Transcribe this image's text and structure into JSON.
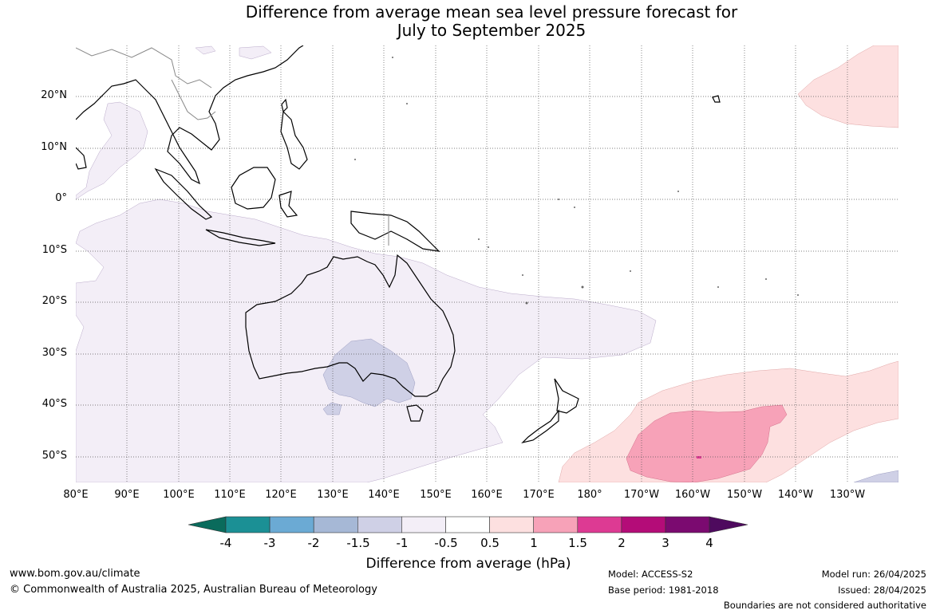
{
  "title": {
    "line1": "Difference from average mean sea level pressure forecast for",
    "line2": "July to September 2025"
  },
  "axes": {
    "lat_labels": [
      "20°N",
      "10°N",
      "0°",
      "10°S",
      "20°S",
      "30°S",
      "40°S",
      "50°S"
    ],
    "lon_labels": [
      "80°E",
      "90°E",
      "100°E",
      "110°E",
      "120°E",
      "130°E",
      "140°E",
      "150°E",
      "160°E",
      "170°E",
      "180°",
      "170°W",
      "160°W",
      "150°W",
      "140°W",
      "130°W"
    ]
  },
  "colorbar": {
    "title": "Difference from average (hPa)",
    "tick_labels": [
      "-4",
      "-3",
      "-2",
      "-1.5",
      "-1",
      "-0.5",
      "0.5",
      "1",
      "1.5",
      "2",
      "3",
      "4"
    ],
    "colors": [
      "#0a6b5c",
      "#1b9095",
      "#6baad4",
      "#a6b8d6",
      "#cfd0e6",
      "#f3eef7",
      "#ffffff",
      "#fde0e0",
      "#f7a2b8",
      "#dd3a93",
      "#b40c78",
      "#7b0a70",
      "#4e0a5e"
    ]
  },
  "footer": {
    "url": "www.bom.gov.au/climate",
    "copyright": "© Commonwealth of Australia 2025, Australian Bureau of Meteorology",
    "model": "Model: ACCESS-S2",
    "base_period": "Base period: 1981-2018",
    "model_run": "Model run: 26/04/2025",
    "issued": "Issued: 28/04/2025",
    "disclaimer": "Boundaries are not considered authoritative"
  }
}
